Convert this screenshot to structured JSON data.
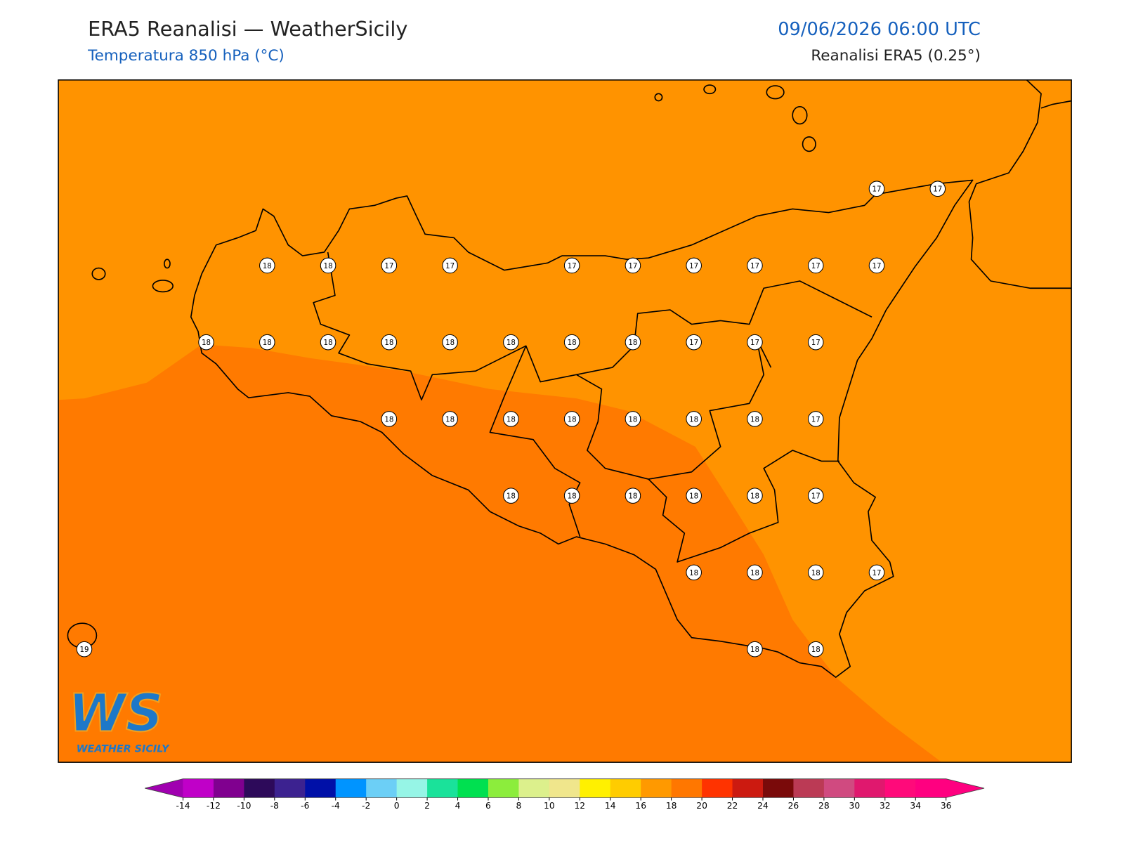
{
  "header": {
    "title": "ERA5 Reanalisi — WeatherSicily",
    "subtitle": "Temperatura 850 hPa (°C)",
    "datetime": "09/06/2026 06:00 UTC",
    "source": "Reanalisi ERA5 (0.25°)"
  },
  "map": {
    "field_colors": [
      "#ff9300",
      "#ff7a00"
    ],
    "temperature_labels": [
      17,
      17,
      18,
      18,
      17,
      17,
      17,
      17,
      17,
      17,
      17,
      17,
      18,
      18,
      18,
      18,
      18,
      18,
      18,
      18,
      17,
      17,
      17,
      18,
      18,
      18,
      18,
      18,
      18,
      18,
      17,
      18,
      18,
      18,
      18,
      18,
      17,
      18,
      18,
      18,
      17,
      19,
      18,
      18
    ]
  },
  "logo": {
    "mark": "WS",
    "name": "WEATHER SICILY"
  },
  "colorbar": {
    "ticks": [
      -14,
      -12,
      -10,
      -8,
      -6,
      -4,
      -2,
      0,
      2,
      4,
      6,
      8,
      10,
      12,
      14,
      16,
      18,
      20,
      22,
      24,
      26,
      28,
      30,
      32,
      34,
      36
    ],
    "colors": [
      "#c000c8",
      "#80008f",
      "#2d0a5a",
      "#3c2290",
      "#0010a8",
      "#0094ff",
      "#6ccff6",
      "#96f5e6",
      "#1ae29a",
      "#00e050",
      "#8ced3c",
      "#dcf08c",
      "#f0e68c",
      "#fff000",
      "#ffcc00",
      "#ff9900",
      "#ff7700",
      "#ff3300",
      "#cc1a10",
      "#7a0a0a",
      "#bb3a55",
      "#d04a80",
      "#e0186e",
      "#ff0a7a",
      "#ff0080"
    ],
    "under_color": "#a000b0",
    "over_color": "#ff0080"
  }
}
